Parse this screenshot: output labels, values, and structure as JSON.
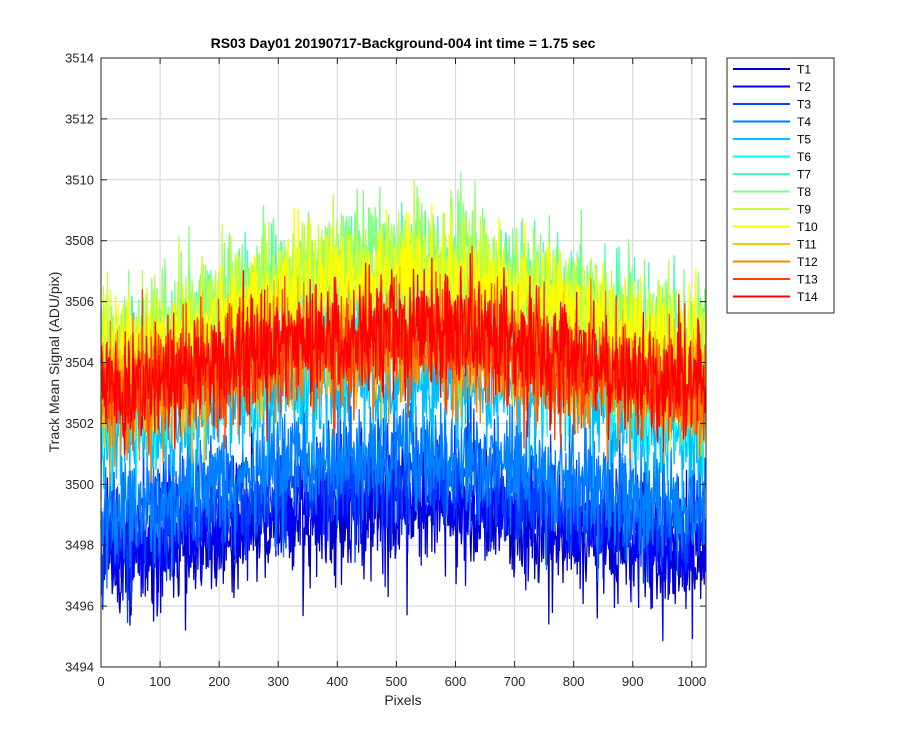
{
  "chart_data": {
    "type": "line",
    "title": "RS03 Day01 20190717-Background-004 int time = 1.75 sec",
    "xlabel": "Pixels",
    "ylabel": "Track Mean Signal (ADU/pix)",
    "xlim": [
      0,
      1024
    ],
    "ylim": [
      3494,
      3514
    ],
    "xticks": [
      0,
      100,
      200,
      300,
      400,
      500,
      600,
      700,
      800,
      900,
      1000
    ],
    "yticks": [
      3494,
      3496,
      3498,
      3500,
      3502,
      3504,
      3506,
      3508,
      3510,
      3512,
      3514
    ],
    "grid": true,
    "legend_location": "outside-top-right",
    "series": [
      {
        "name": "T1",
        "color": "#0000bf",
        "x": [
          0,
          100,
          200,
          300,
          400,
          500,
          600,
          700,
          800,
          900,
          1023
        ],
        "values": [
          3497.5,
          3497.6,
          3498.2,
          3498.7,
          3499.0,
          3499.2,
          3499.1,
          3498.8,
          3498.3,
          3497.8,
          3497.4
        ],
        "noise": 1.1
      },
      {
        "name": "T2",
        "color": "#0000ff",
        "x": [
          0,
          100,
          200,
          300,
          400,
          500,
          600,
          700,
          800,
          900,
          1023
        ],
        "values": [
          3498.0,
          3498.1,
          3498.7,
          3499.2,
          3499.5,
          3499.7,
          3499.6,
          3499.3,
          3498.8,
          3498.3,
          3497.9
        ],
        "noise": 1.1
      },
      {
        "name": "T3",
        "color": "#0040ff",
        "x": [
          0,
          100,
          200,
          300,
          400,
          500,
          600,
          700,
          800,
          900,
          1023
        ],
        "values": [
          3498.6,
          3498.8,
          3499.4,
          3499.9,
          3500.2,
          3500.4,
          3500.3,
          3500.0,
          3499.5,
          3499.0,
          3498.6
        ],
        "noise": 1.1
      },
      {
        "name": "T4",
        "color": "#0080ff",
        "x": [
          0,
          100,
          200,
          300,
          400,
          500,
          600,
          700,
          800,
          900,
          1023
        ],
        "values": [
          3499.2,
          3499.4,
          3500.0,
          3500.5,
          3500.8,
          3501.0,
          3500.9,
          3500.6,
          3500.1,
          3499.6,
          3499.2
        ],
        "noise": 1.1
      },
      {
        "name": "T5",
        "color": "#00bfff",
        "x": [
          0,
          100,
          200,
          300,
          400,
          500,
          600,
          700,
          800,
          900,
          1023
        ],
        "values": [
          3501.5,
          3501.8,
          3502.5,
          3503.0,
          3503.3,
          3503.5,
          3503.4,
          3503.1,
          3502.6,
          3502.0,
          3501.6
        ],
        "noise": 1.1
      },
      {
        "name": "T6",
        "color": "#00ffff",
        "x": [
          0,
          100,
          200,
          300,
          400,
          500,
          600,
          700,
          800,
          900,
          1023
        ],
        "values": [
          3502.5,
          3502.8,
          3503.6,
          3504.3,
          3504.7,
          3504.9,
          3504.8,
          3504.4,
          3503.8,
          3503.1,
          3502.6
        ],
        "noise": 1.1
      },
      {
        "name": "T7",
        "color": "#40ffbf",
        "x": [
          0,
          100,
          200,
          300,
          400,
          500,
          600,
          700,
          800,
          900,
          1023
        ],
        "values": [
          3504.0,
          3504.5,
          3505.5,
          3506.3,
          3506.8,
          3507.0,
          3506.9,
          3506.4,
          3505.7,
          3504.9,
          3504.2
        ],
        "noise": 1.2
      },
      {
        "name": "T8",
        "color": "#80ff80",
        "x": [
          0,
          100,
          200,
          300,
          400,
          500,
          600,
          700,
          800,
          900,
          1023
        ],
        "values": [
          3504.3,
          3504.8,
          3505.8,
          3506.6,
          3507.1,
          3507.3,
          3507.2,
          3506.7,
          3506.0,
          3505.2,
          3504.5
        ],
        "noise": 1.2
      },
      {
        "name": "T9",
        "color": "#bfff40",
        "x": [
          0,
          100,
          200,
          300,
          400,
          500,
          600,
          700,
          800,
          900,
          1023
        ],
        "values": [
          3504.2,
          3504.7,
          3505.7,
          3506.5,
          3507.0,
          3507.2,
          3507.1,
          3506.6,
          3505.9,
          3505.1,
          3504.4
        ],
        "noise": 1.2
      },
      {
        "name": "T10",
        "color": "#ffff00",
        "x": [
          0,
          100,
          200,
          300,
          400,
          500,
          600,
          700,
          800,
          900,
          1023
        ],
        "values": [
          3504.0,
          3504.4,
          3505.3,
          3506.0,
          3506.5,
          3506.7,
          3506.6,
          3506.1,
          3505.4,
          3504.7,
          3504.1
        ],
        "noise": 1.2
      },
      {
        "name": "T11",
        "color": "#ffbf00",
        "x": [
          0,
          100,
          200,
          300,
          400,
          500,
          600,
          700,
          800,
          900,
          1023
        ],
        "values": [
          3503.0,
          3503.3,
          3503.9,
          3504.4,
          3504.7,
          3504.8,
          3504.7,
          3504.4,
          3503.9,
          3503.4,
          3503.0
        ],
        "noise": 1.1
      },
      {
        "name": "T12",
        "color": "#ff8000",
        "x": [
          0,
          100,
          200,
          300,
          400,
          500,
          600,
          700,
          800,
          900,
          1023
        ],
        "values": [
          3502.8,
          3503.1,
          3503.7,
          3504.2,
          3504.5,
          3504.6,
          3504.5,
          3504.2,
          3503.7,
          3503.2,
          3502.8
        ],
        "noise": 1.1
      },
      {
        "name": "T13",
        "color": "#ff4000",
        "x": [
          0,
          100,
          200,
          300,
          400,
          500,
          600,
          700,
          800,
          900,
          1023
        ],
        "values": [
          3503.0,
          3503.3,
          3503.9,
          3504.4,
          3504.7,
          3504.9,
          3504.8,
          3504.5,
          3503.9,
          3503.4,
          3503.0
        ],
        "noise": 1.1
      },
      {
        "name": "T14",
        "color": "#ff0000",
        "x": [
          0,
          100,
          200,
          300,
          400,
          500,
          600,
          700,
          800,
          900,
          1023
        ],
        "values": [
          3503.2,
          3503.5,
          3504.1,
          3504.6,
          3504.9,
          3505.1,
          3505.0,
          3504.7,
          3504.1,
          3503.6,
          3503.2
        ],
        "noise": 1.1
      }
    ]
  }
}
